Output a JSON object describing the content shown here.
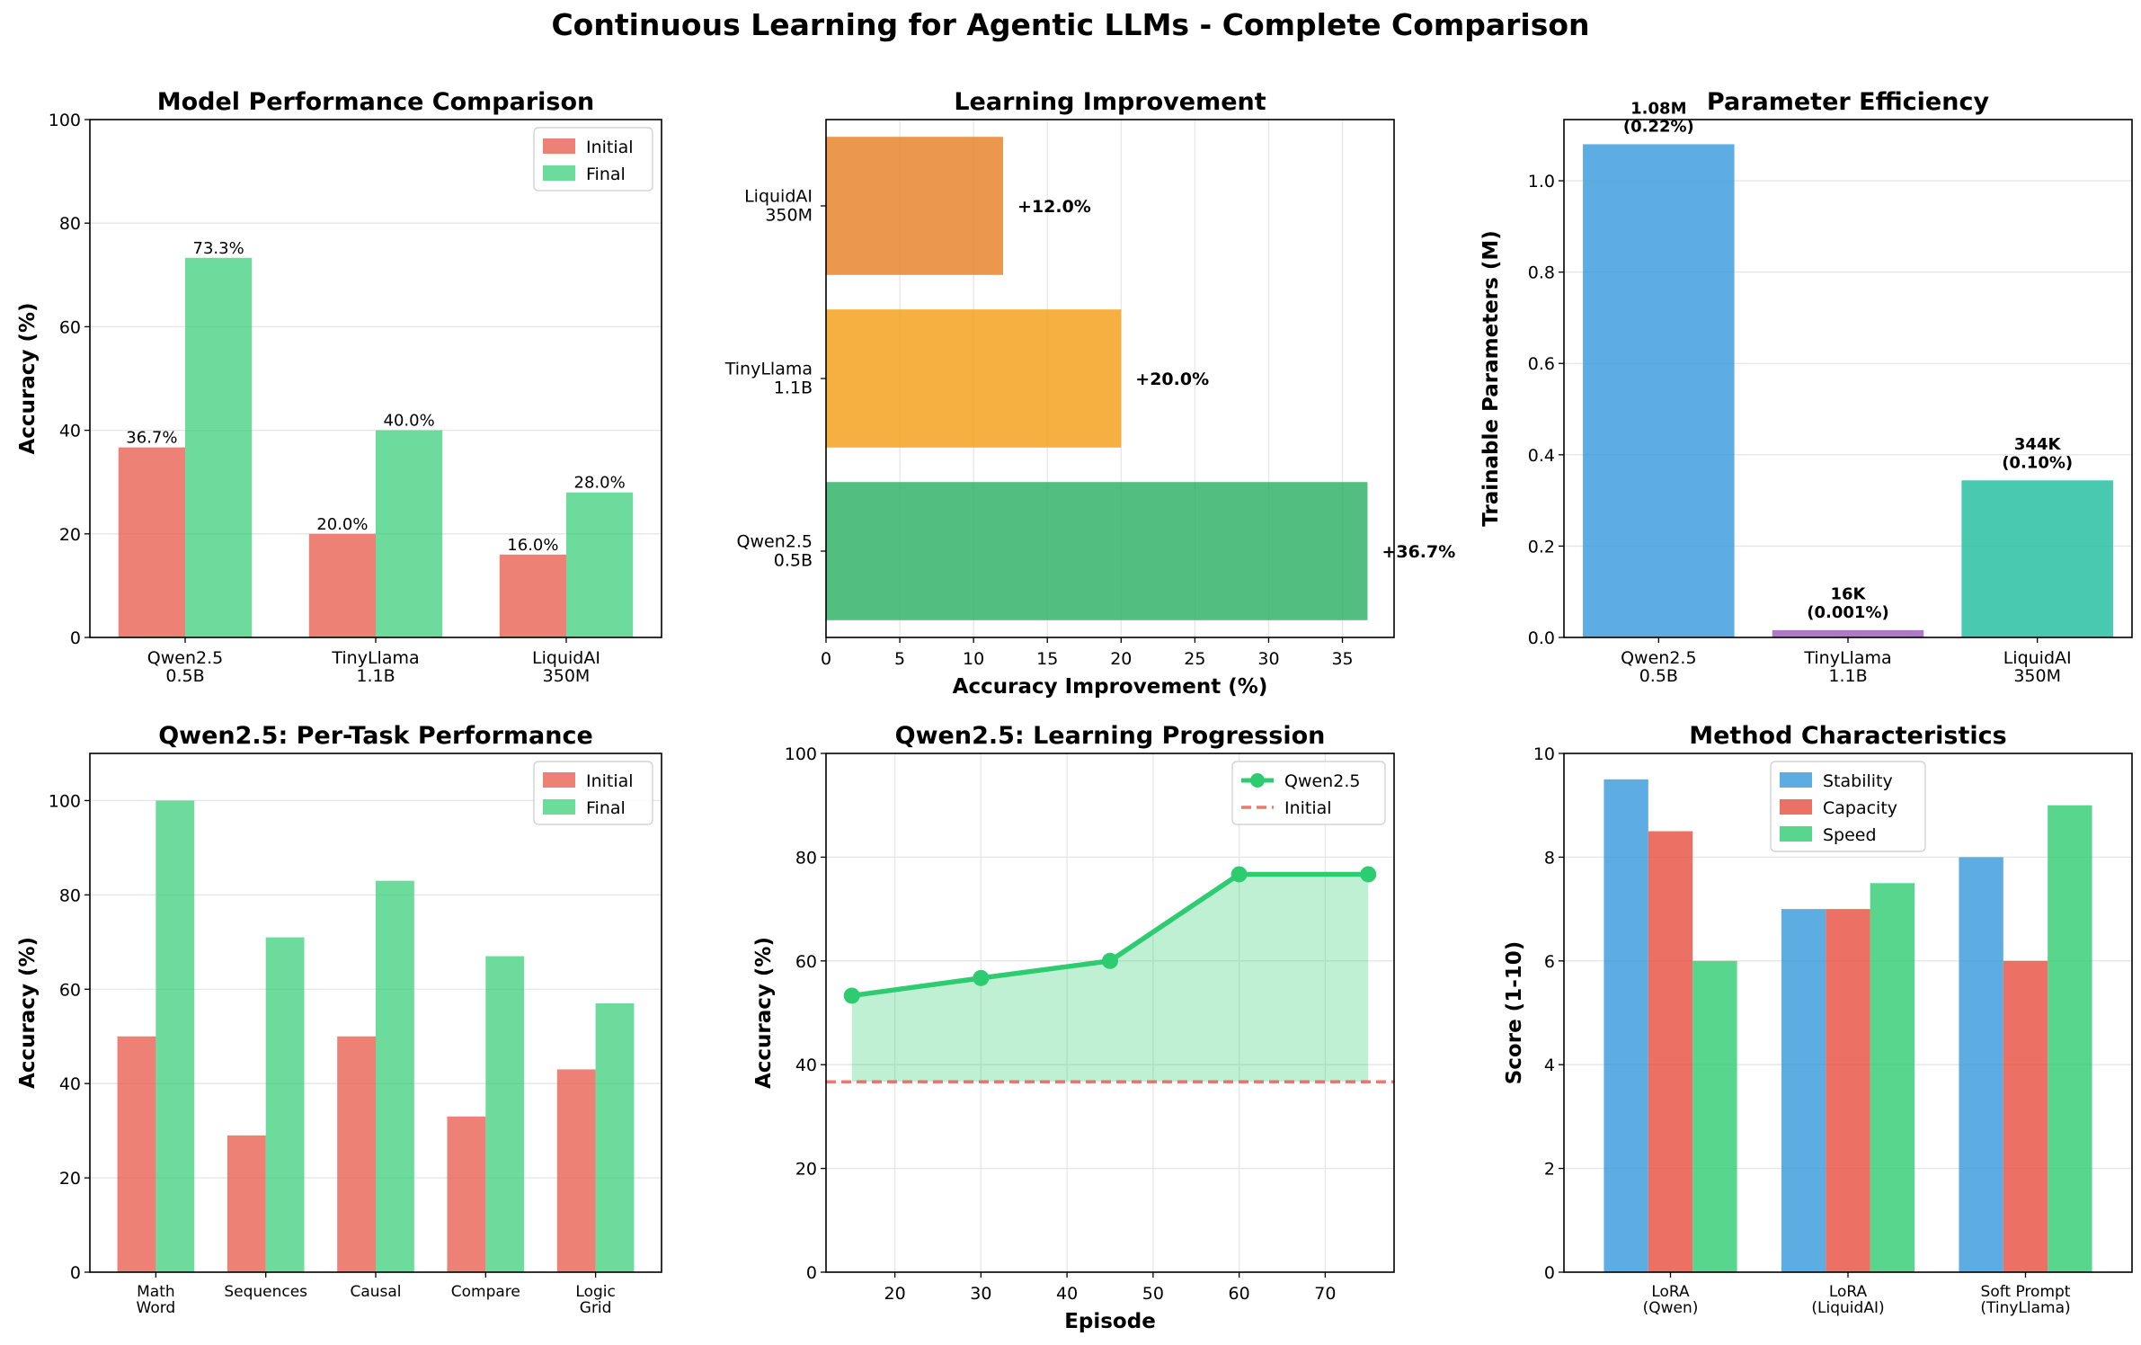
{
  "figure": {
    "title": "Continuous Learning for Agentic LLMs - Complete Comparison"
  },
  "chart_data": [
    {
      "type": "bar",
      "title": "Model Performance Comparison",
      "xlabel": "",
      "ylabel": "Accuracy (%)",
      "ylim": [
        0,
        100
      ],
      "yticks": [
        0,
        20,
        40,
        60,
        80,
        100
      ],
      "categories": [
        "Qwen2.5\n0.5B",
        "TinyLlama\n1.1B",
        "LiquidAI\n350M"
      ],
      "series": [
        {
          "name": "Initial",
          "values": [
            36.7,
            20.0,
            16.0
          ],
          "labels": [
            "36.7%",
            "20.0%",
            "16.0%"
          ],
          "color": "#e74c3c"
        },
        {
          "name": "Final",
          "values": [
            73.3,
            40.0,
            28.0
          ],
          "labels": [
            "73.3%",
            "40.0%",
            "28.0%"
          ],
          "color": "#2ecc71"
        }
      ],
      "grid": "y",
      "legend": "top-right"
    },
    {
      "type": "bar",
      "orientation": "horizontal",
      "title": "Learning Improvement",
      "xlabel": "Accuracy Improvement (%)",
      "ylabel": "",
      "xlim": [
        0,
        38.5
      ],
      "xticks": [
        0,
        5,
        10,
        15,
        20,
        25,
        30,
        35
      ],
      "categories": [
        "Qwen2.5\n0.5B",
        "TinyLlama\n1.1B",
        "LiquidAI\n350M"
      ],
      "values": [
        36.7,
        20.0,
        12.0
      ],
      "labels": [
        "+36.7%",
        "+20.0%",
        "+12.0%"
      ],
      "colors": [
        "#27ae60",
        "#f39c12",
        "#e67e22"
      ],
      "grid": "x"
    },
    {
      "type": "bar",
      "title": "Parameter Efficiency",
      "xlabel": "",
      "ylabel": "Trainable Parameters (M)",
      "ylim": [
        0,
        1.134
      ],
      "yticks": [
        0.0,
        0.2,
        0.4,
        0.6,
        0.8,
        1.0
      ],
      "categories": [
        "Qwen2.5\n0.5B",
        "TinyLlama\n1.1B",
        "LiquidAI\n350M"
      ],
      "values": [
        1.08,
        0.016,
        0.344
      ],
      "labels": [
        "1.08M\n(0.22%)",
        "16K\n(0.001%)",
        "344K\n(0.10%)"
      ],
      "colors": [
        "#3498db",
        "#9b59b6",
        "#1abc9c"
      ],
      "grid": "y"
    },
    {
      "type": "bar",
      "title": "Qwen2.5: Per-Task Performance",
      "xlabel": "",
      "ylabel": "Accuracy (%)",
      "ylim": [
        0,
        110
      ],
      "yticks": [
        0,
        20,
        40,
        60,
        80,
        100
      ],
      "categories": [
        "Math\nWord",
        "Sequences",
        "Causal",
        "Compare",
        "Logic\nGrid"
      ],
      "series": [
        {
          "name": "Initial",
          "values": [
            50,
            29,
            50,
            33,
            43
          ],
          "color": "#e74c3c"
        },
        {
          "name": "Final",
          "values": [
            100,
            71,
            83,
            67,
            57
          ],
          "color": "#2ecc71"
        }
      ],
      "grid": "y",
      "legend": "top-right"
    },
    {
      "type": "line",
      "title": "Qwen2.5: Learning Progression",
      "xlabel": "Episode",
      "ylabel": "Accuracy (%)",
      "xlim": [
        12,
        78
      ],
      "ylim": [
        0,
        100
      ],
      "xticks": [
        20,
        30,
        40,
        50,
        60,
        70
      ],
      "yticks": [
        0,
        20,
        40,
        60,
        80,
        100
      ],
      "series": [
        {
          "name": "Qwen2.5",
          "x": [
            15,
            30,
            45,
            60,
            75
          ],
          "y": [
            53.3,
            56.7,
            60.0,
            76.7,
            76.7
          ],
          "color": "#2ecc71"
        },
        {
          "name": "Initial",
          "hline": 36.7,
          "style": "dashed",
          "color": "#e74c3c"
        }
      ],
      "grid": "both",
      "legend": "top-right"
    },
    {
      "type": "bar",
      "title": "Method Characteristics",
      "xlabel": "",
      "ylabel": "Score (1-10)",
      "ylim": [
        0,
        10
      ],
      "yticks": [
        0,
        2,
        4,
        6,
        8,
        10
      ],
      "categories": [
        "LoRA\n(Qwen)",
        "LoRA\n(LiquidAI)",
        "Soft Prompt\n(TinyLlama)"
      ],
      "series": [
        {
          "name": "Stability",
          "values": [
            9.5,
            7.0,
            8.0
          ],
          "color": "#3498db"
        },
        {
          "name": "Capacity",
          "values": [
            8.5,
            7.0,
            6.0
          ],
          "color": "#e74c3c"
        },
        {
          "name": "Speed",
          "values": [
            6.0,
            7.5,
            9.0
          ],
          "color": "#2ecc71"
        }
      ],
      "grid": "y",
      "legend": "top-center"
    }
  ]
}
